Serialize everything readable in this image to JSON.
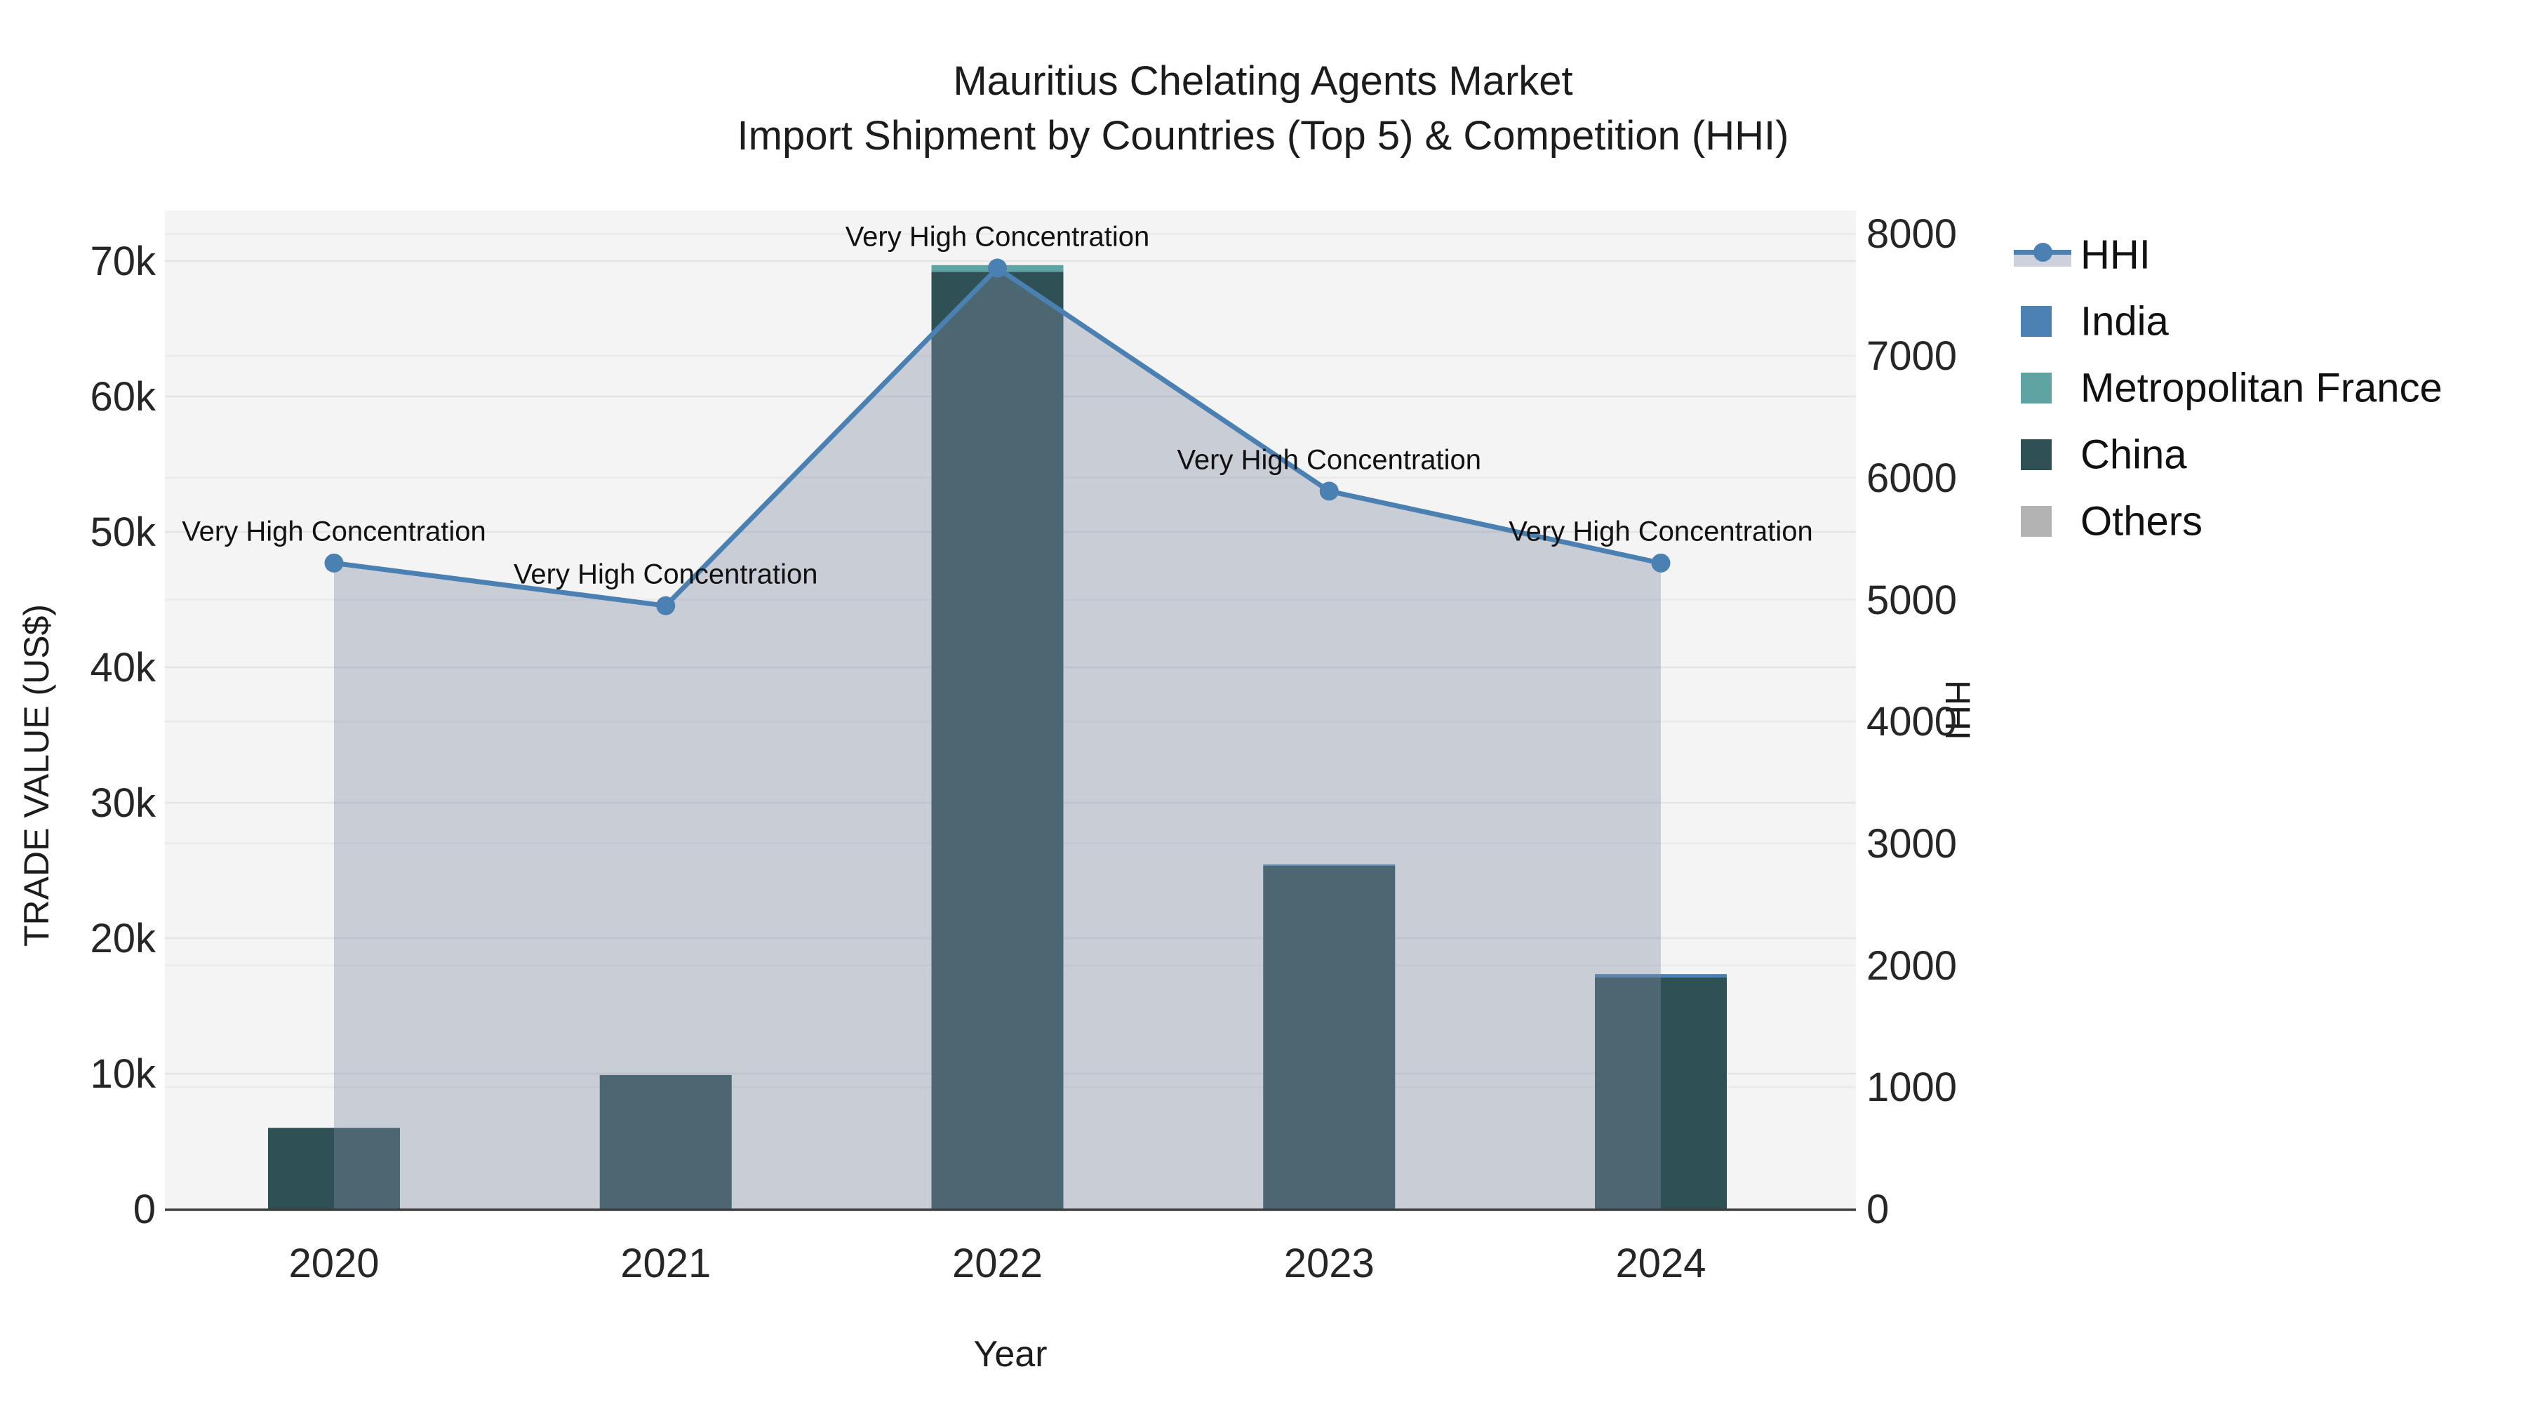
{
  "title": {
    "line1": "Mauritius Chelating Agents Market",
    "line2": "Import Shipment by Countries (Top 5) & Competition (HHI)"
  },
  "axes": {
    "left": {
      "title": "TRADE VALUE (US$)",
      "ticks": [
        "0",
        "10k",
        "20k",
        "30k",
        "40k",
        "50k",
        "60k",
        "70k"
      ],
      "tick_values": [
        0,
        10000,
        20000,
        30000,
        40000,
        50000,
        60000,
        70000
      ]
    },
    "right": {
      "title": "HHI",
      "ticks": [
        "0",
        "1000",
        "2000",
        "3000",
        "4000",
        "5000",
        "6000",
        "7000",
        "8000"
      ],
      "tick_values": [
        0,
        1000,
        2000,
        3000,
        4000,
        5000,
        6000,
        7000,
        8000
      ]
    },
    "x": {
      "title": "Year",
      "ticks": [
        "2020",
        "2021",
        "2022",
        "2023",
        "2024"
      ]
    }
  },
  "legend": {
    "position": "right",
    "items": [
      {
        "label": "HHI",
        "type": "line",
        "color": "#4a80b2",
        "band_color": "#ccd1dd"
      },
      {
        "label": "India",
        "type": "swatch",
        "color": "#4a82b4"
      },
      {
        "label": "Metropolitan France",
        "type": "swatch",
        "color": "#5fa3a3"
      },
      {
        "label": "China",
        "type": "swatch",
        "color": "#2f5156"
      },
      {
        "label": "Others",
        "type": "swatch",
        "color": "#b3b3b3"
      }
    ]
  },
  "colors": {
    "plot_background": "#f4f4f4",
    "grid_left": "#e4e4e4",
    "grid_right": "#eaeaea",
    "axis_line": "#3d3d3d",
    "hhi_line": "#4a80b2",
    "hhi_area_fill": "rgba(128,139,163,0.37)"
  },
  "chart_data": {
    "type": "bar+line",
    "title": "Mauritius Chelating Agents Market — Import Shipment by Countries (Top 5) & Competition (HHI)",
    "categories": [
      "2020",
      "2021",
      "2022",
      "2023",
      "2024"
    ],
    "xlabel": "Year",
    "ylabel_left": "TRADE VALUE (US$)",
    "ylabel_right": "HHI",
    "ylim_left": [
      0,
      70000
    ],
    "ylim_right": [
      0,
      8000
    ],
    "grid": true,
    "legend_position": "right",
    "bar_series": [
      {
        "name": "China",
        "color": "#2f5156",
        "axis": "left",
        "values": [
          6000,
          9900,
          69200,
          25350,
          17100
        ]
      },
      {
        "name": "Metropolitan France",
        "color": "#5fa3a3",
        "axis": "left",
        "values": [
          0,
          0,
          500,
          0,
          0
        ]
      },
      {
        "name": "India",
        "color": "#4a82b4",
        "axis": "left",
        "values": [
          0,
          0,
          0,
          100,
          250
        ]
      },
      {
        "name": "Others",
        "color": "#b3b3b3",
        "axis": "left",
        "values": [
          0,
          0,
          0,
          0,
          0
        ]
      }
    ],
    "line_series": {
      "name": "HHI",
      "axis": "right",
      "color": "#4a80b2",
      "area_fill": "rgba(128,139,163,0.37)",
      "values": [
        5300,
        4950,
        7720,
        5890,
        5300
      ]
    },
    "annotations": [
      {
        "category": "2020",
        "text": "Very High Concentration"
      },
      {
        "category": "2021",
        "text": "Very High Concentration"
      },
      {
        "category": "2022",
        "text": "Very High Concentration"
      },
      {
        "category": "2023",
        "text": "Very High Concentration"
      },
      {
        "category": "2024",
        "text": "Very High Concentration"
      }
    ]
  }
}
